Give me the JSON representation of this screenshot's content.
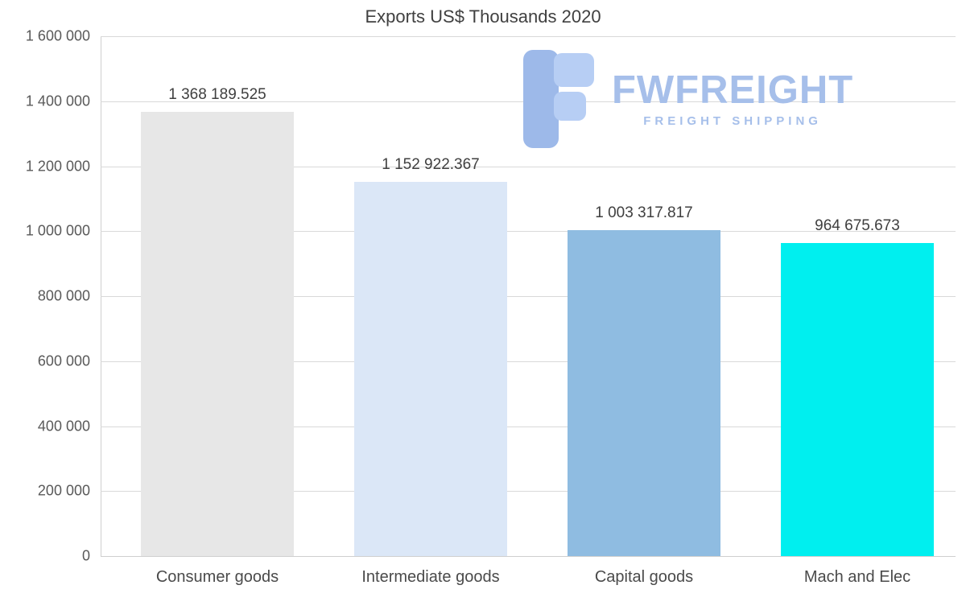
{
  "chart_data": {
    "type": "bar",
    "title": "Exports US$ Thousands 2020",
    "categories": [
      "Consumer goods",
      "Intermediate goods",
      "Capital goods",
      "Mach and Elec"
    ],
    "values": [
      1368189.525,
      1152922.367,
      1003317.817,
      964675.673
    ],
    "value_labels": [
      "1 368 189.525",
      "1 152 922.367",
      "1 003 317.817",
      "964 675.673"
    ],
    "bar_colors": [
      "#e7e7e7",
      "#dbe7f7",
      "#8fbce1",
      "#00efef"
    ],
    "xlabel": "",
    "ylabel": "",
    "ylim": [
      0,
      1600000
    ],
    "ytick_values": [
      0,
      200000,
      400000,
      600000,
      800000,
      1000000,
      1200000,
      1400000,
      1600000
    ],
    "ytick_labels": [
      "0",
      "200 000",
      "400 000",
      "600 000",
      "800 000",
      "1 000 000",
      "1 200 000",
      "1 400 000",
      "1 600 000"
    ],
    "grid": true,
    "legend": null
  },
  "watermark": {
    "brand": "FWFREIGHT",
    "tagline": "FREIGHT SHIPPING",
    "color": "#a6bfea"
  }
}
